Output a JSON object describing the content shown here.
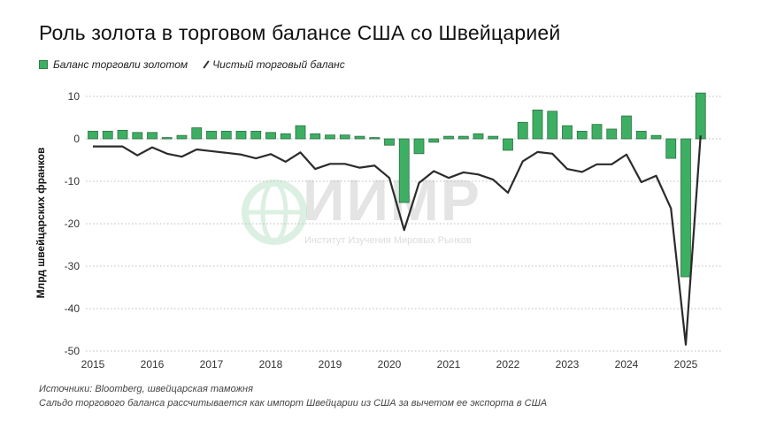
{
  "watermark": {
    "logo_text": "ИИМР",
    "subtitle": "Институт Изучения Мировых Рынков"
  },
  "chart_data": {
    "type": "bar",
    "title": "Роль золота в торговом балансе США со Швейцарией",
    "ylabel": "Млрд швейцарских франков",
    "xlabel": "",
    "ylim": [
      -50,
      10
    ],
    "yticks": [
      10,
      0,
      -10,
      -20,
      -30,
      -40,
      -50
    ],
    "ytick_labels": [
      "10",
      "0",
      "-10",
      "-20",
      "-30",
      "-40",
      "-50"
    ],
    "xtick_labels": [
      "2015",
      "2016",
      "2017",
      "2018",
      "2019",
      "2020",
      "2021",
      "2022",
      "2023",
      "2024",
      "2025"
    ],
    "grid": "horizontal dotted",
    "legend_position": "top-left",
    "periods": "quarterly, 2015 Q1 – 2025 Q2",
    "series": [
      {
        "name": "Баланс торговли золотом",
        "type": "bar",
        "color": "#3daf63",
        "values": [
          1.8,
          1.8,
          2.0,
          1.5,
          1.5,
          0.3,
          0.8,
          2.6,
          1.8,
          1.8,
          1.8,
          1.8,
          1.5,
          1.2,
          3.1,
          1.2,
          0.9,
          0.9,
          0.6,
          0.3,
          -1.5,
          -15.0,
          -3.5,
          -0.8,
          0.6,
          0.6,
          1.2,
          0.6,
          -2.7,
          3.9,
          6.8,
          6.5,
          3.1,
          1.8,
          3.4,
          2.3,
          5.4,
          1.8,
          0.8,
          -4.6,
          -32.5,
          10.8
        ]
      },
      {
        "name": "Чистый торговый баланс",
        "type": "line",
        "color": "#2b2b2b",
        "values": [
          -1.8,
          -1.8,
          -1.8,
          -3.9,
          -2.0,
          -3.5,
          -4.2,
          -2.5,
          -2.9,
          -3.3,
          -3.7,
          -4.6,
          -3.6,
          -5.4,
          -3.2,
          -7.1,
          -5.9,
          -5.9,
          -6.8,
          -6.3,
          -9.2,
          -21.5,
          -10.4,
          -7.6,
          -9.2,
          -7.9,
          -8.4,
          -9.6,
          -12.7,
          -5.3,
          -3.1,
          -3.5,
          -7.1,
          -7.8,
          -6.0,
          -6.0,
          -3.7,
          -10.2,
          -8.7,
          -16.4,
          -48.5,
          0.8
        ]
      }
    ]
  },
  "footer": {
    "sources": "Источники: Bloomberg, швейцарская таможня",
    "note": "Сальдо торгового баланса рассчитывается как импорт Швейцарии из США за вычетом ее экспорта в США"
  }
}
